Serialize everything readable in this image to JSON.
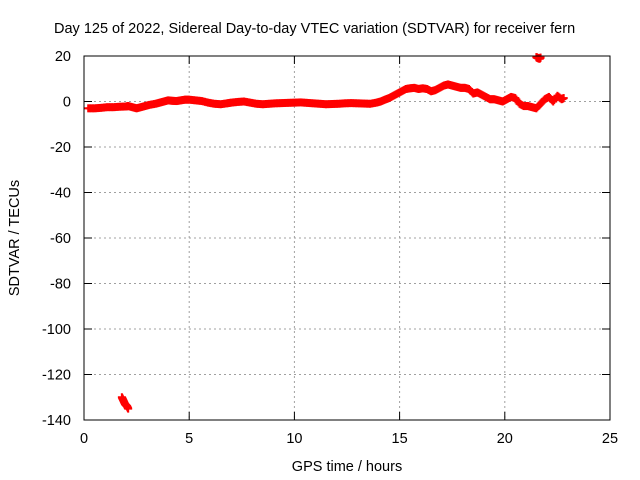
{
  "chart_data": {
    "type": "scatter",
    "title": "Day 125 of 2022, Sidereal Day-to-day VTEC variation (SDTVAR) for receiver fern",
    "xlabel": "GPS time / hours",
    "ylabel": "SDTVAR / TECUs",
    "xlim": [
      0,
      25
    ],
    "ylim": [
      -140,
      20
    ],
    "xticks": [
      0,
      5,
      10,
      15,
      20,
      25
    ],
    "yticks": [
      -140,
      -120,
      -100,
      -80,
      -60,
      -40,
      -20,
      0,
      20
    ],
    "grid": true,
    "marker_color": "#ff0000",
    "series": [
      {
        "name": "main",
        "x": [
          0.2,
          0.5,
          0.8,
          1.1,
          1.4,
          1.7,
          2.0,
          2.1,
          2.3,
          2.5,
          2.7,
          2.9,
          3.1,
          3.4,
          3.6,
          3.8,
          4.0,
          4.2,
          4.4,
          4.6,
          4.8,
          5.0,
          5.3,
          5.6,
          5.9,
          6.2,
          6.5,
          6.8,
          7.0,
          7.3,
          7.6,
          7.9,
          8.2,
          8.5,
          8.8,
          9.1,
          9.4,
          9.7,
          10.0,
          10.3,
          10.6,
          10.9,
          11.2,
          11.5,
          11.8,
          12.1,
          12.4,
          12.7,
          13.0,
          13.3,
          13.6,
          13.9,
          14.1,
          14.3,
          14.5,
          14.7,
          14.9,
          15.1,
          15.3,
          15.5,
          15.7,
          15.9,
          16.1,
          16.3,
          16.5,
          16.7,
          16.9,
          17.1,
          17.3,
          17.5,
          17.7,
          17.9,
          18.1,
          18.3,
          18.5,
          18.7,
          18.9,
          19.1,
          19.3,
          19.5,
          19.7,
          19.9,
          20.1,
          20.3,
          20.5,
          20.7,
          20.9,
          21.1,
          21.3,
          21.5,
          21.7,
          21.9,
          22.1,
          22.3,
          22.5,
          22.7,
          22.8
        ],
        "y": [
          -3,
          -3,
          -2.8,
          -2.5,
          -2.5,
          -2.3,
          -2.2,
          -2.0,
          -2.5,
          -3,
          -2.5,
          -2,
          -1.5,
          -1,
          -0.5,
          0,
          0.5,
          0.3,
          0.2,
          0.5,
          0.8,
          0.8,
          0.5,
          0.2,
          -0.5,
          -1,
          -1.2,
          -0.8,
          -0.5,
          -0.2,
          0,
          -0.5,
          -1,
          -1.2,
          -1.0,
          -0.8,
          -0.7,
          -0.6,
          -0.5,
          -0.4,
          -0.6,
          -0.8,
          -1.0,
          -1.2,
          -1.1,
          -1.0,
          -0.8,
          -0.7,
          -0.8,
          -0.9,
          -1.0,
          -0.5,
          0,
          0.8,
          1.5,
          2.5,
          3.5,
          4.5,
          5.5,
          5.8,
          6.0,
          5.5,
          5.8,
          5.5,
          4.5,
          5.0,
          6.0,
          7.0,
          7.5,
          7.0,
          6.5,
          6.0,
          6.0,
          5.5,
          3.5,
          4.0,
          3.0,
          2.0,
          1.0,
          1.0,
          0.5,
          0.0,
          1.0,
          2.0,
          1.5,
          -1.0,
          -2.0,
          -2.0,
          -2.5,
          -3.0,
          -1.0,
          1.0,
          2.0,
          0.0,
          2.5,
          1.0,
          1.5
        ]
      },
      {
        "name": "outliers",
        "x": [
          1.8,
          1.85,
          1.9,
          1.95,
          2.0,
          2.05,
          2.1,
          21.5,
          21.55,
          21.6,
          21.65,
          21.7
        ],
        "y": [
          -130,
          -131,
          -132,
          -133,
          -133.5,
          -134,
          -135,
          19.5,
          19.2,
          19.0,
          18.8,
          19.3
        ]
      }
    ]
  }
}
